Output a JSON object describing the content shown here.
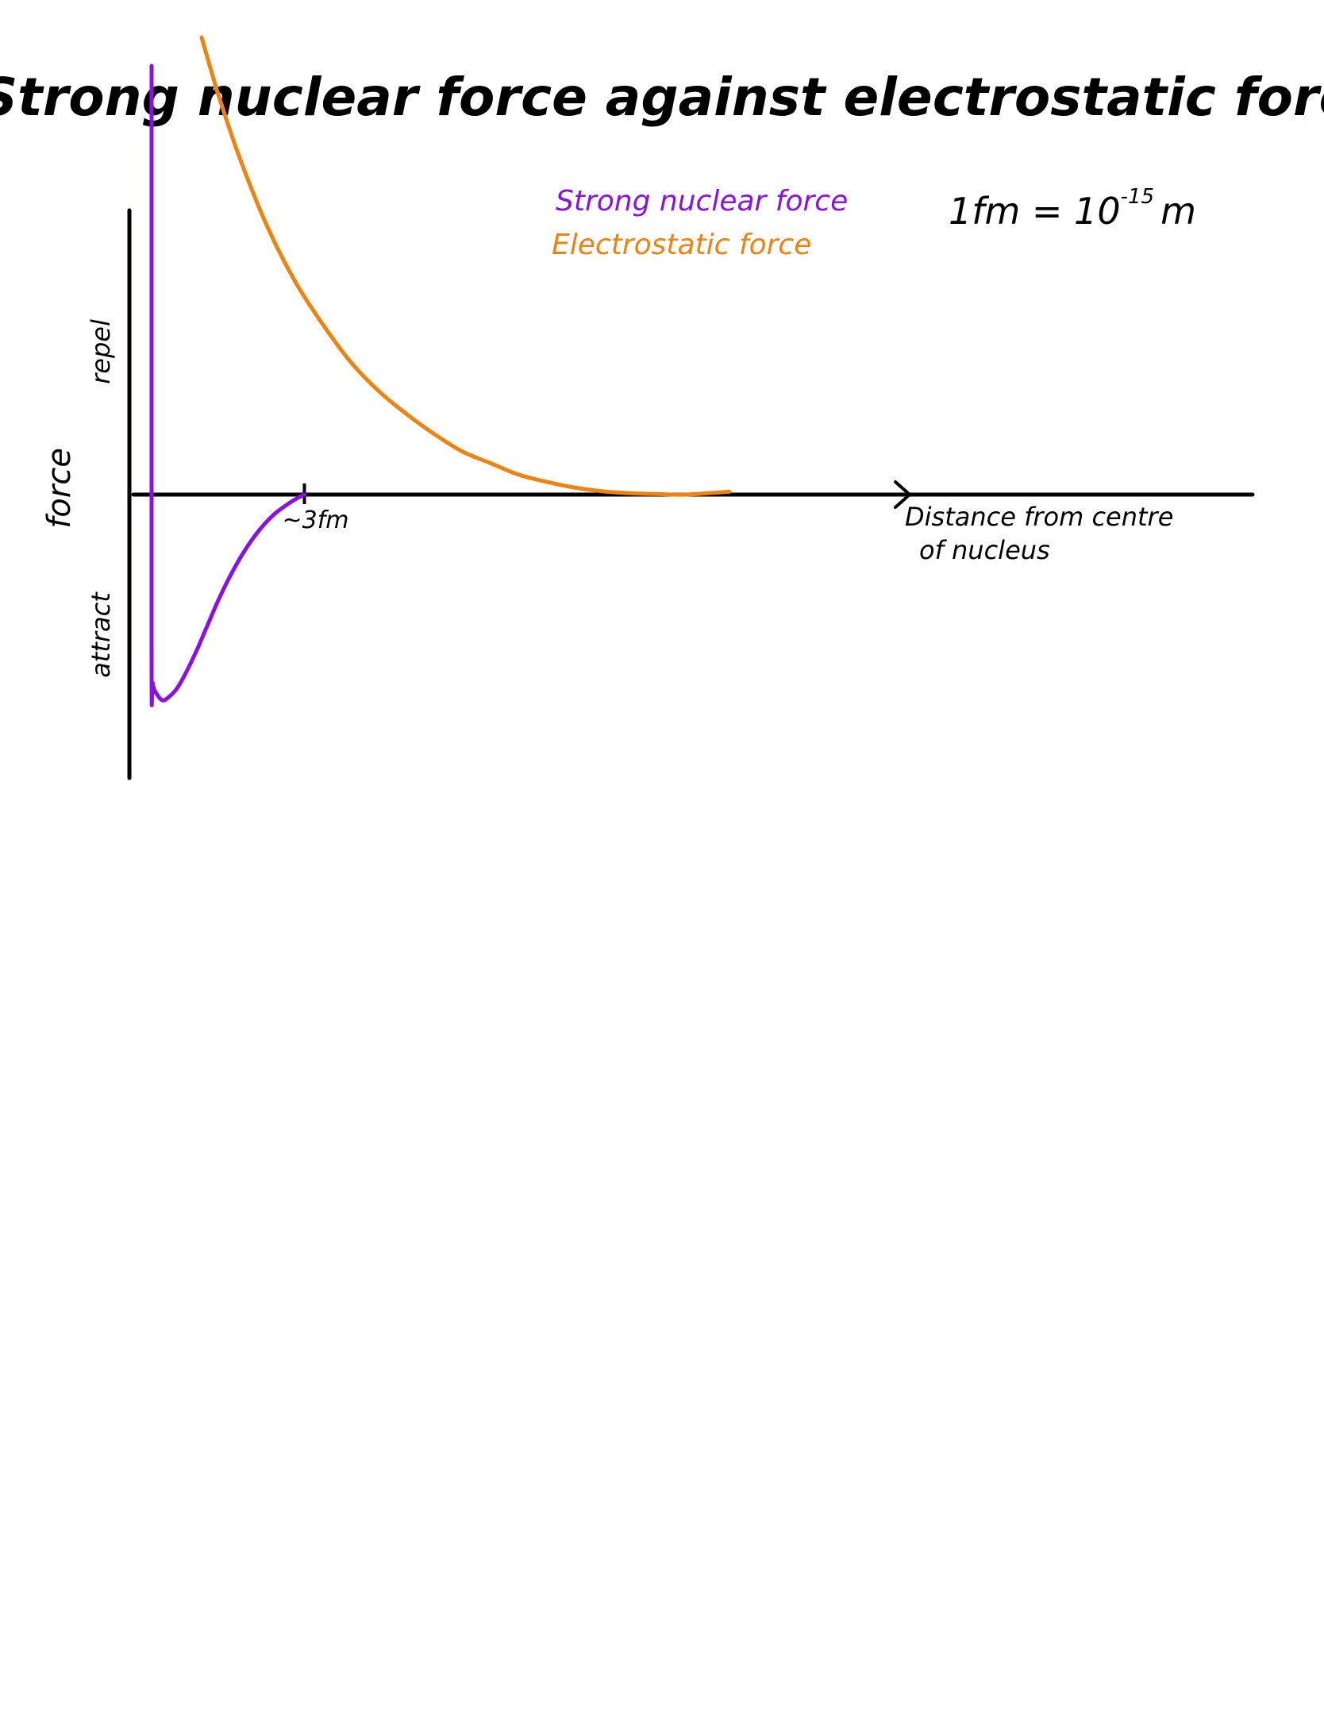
{
  "chart_data": {
    "type": "line",
    "title": "Strong nuclear force against electrostatic force",
    "xlabel": "Distance from centre of nucleus",
    "ylabel": "force",
    "y_region_labels": {
      "positive": "repel",
      "negative": "attract"
    },
    "x_tick_labels": [
      "~3fm"
    ],
    "note": {
      "base": "1fm = 10",
      "exponent": "-15",
      "unit": "m"
    },
    "legend": {
      "placement": "top-center",
      "entries": [
        "Strong nuclear force",
        "Electrostatic force"
      ]
    },
    "xlim": [
      0,
      14
    ],
    "ylim": [
      -1,
      1.6
    ],
    "grid": false,
    "series": [
      {
        "name": "Strong nuclear force",
        "color": "#8b10e6",
        "x": [
          0.4,
          0.4,
          0.42,
          0.5,
          0.6,
          0.7,
          0.85,
          1.0,
          1.2,
          1.4,
          1.6,
          1.8,
          2.0,
          2.2,
          2.4,
          2.6,
          2.8,
          3.0,
          3.15
        ],
        "y": [
          1.5,
          -0.55,
          -0.66,
          -0.7,
          -0.72,
          -0.71,
          -0.68,
          -0.63,
          -0.55,
          -0.46,
          -0.37,
          -0.29,
          -0.22,
          -0.16,
          -0.11,
          -0.07,
          -0.04,
          -0.015,
          0
        ]
      },
      {
        "name": "Electrostatic force",
        "color": "#f0820f",
        "x": [
          1.3,
          1.6,
          2.0,
          2.5,
          3.0,
          3.5,
          4.0,
          4.5,
          5.0,
          5.5,
          6.0,
          6.5,
          7.0,
          7.5,
          8.0,
          8.5,
          9.0,
          9.5,
          10.0,
          10.8
        ],
        "y": [
          1.6,
          1.4,
          1.17,
          0.93,
          0.74,
          0.59,
          0.46,
          0.36,
          0.28,
          0.21,
          0.15,
          0.11,
          0.07,
          0.045,
          0.025,
          0.012,
          0.005,
          0.002,
          0.0,
          0.01
        ]
      }
    ]
  }
}
